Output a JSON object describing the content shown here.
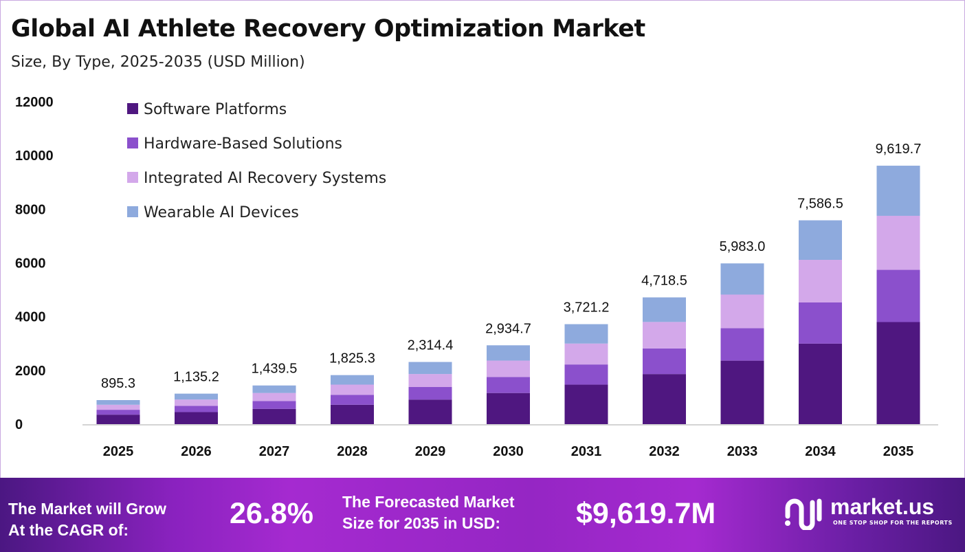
{
  "chart_data": {
    "type": "bar",
    "stacked": true,
    "title": "Global AI Athlete Recovery Optimization Market",
    "subtitle": "Size, By Type, 2025-2035 (USD Million)",
    "categories": [
      "2025",
      "2026",
      "2027",
      "2028",
      "2029",
      "2030",
      "2031",
      "2032",
      "2033",
      "2034",
      "2035"
    ],
    "series": [
      {
        "name": "Software Platforms",
        "color": "#4f1780",
        "values": [
          353.6,
          448.4,
          568.6,
          721.0,
          914.2,
          1159.2,
          1469.9,
          1863.8,
          2363.3,
          2996.7,
          3799.8
        ]
      },
      {
        "name": "Hardware-Based Solutions",
        "color": "#8b50cc",
        "values": [
          180.9,
          229.3,
          290.8,
          368.7,
          467.5,
          592.8,
          751.7,
          953.1,
          1208.6,
          1532.5,
          1943.2
        ]
      },
      {
        "name": "Integrated AI Recovery Systems",
        "color": "#d3a8ea",
        "values": [
          187.1,
          237.3,
          300.9,
          381.5,
          483.7,
          613.4,
          777.7,
          986.2,
          1250.4,
          1585.6,
          2010.5
        ]
      },
      {
        "name": "Wearable AI Devices",
        "color": "#8eaadd",
        "values": [
          173.7,
          220.2,
          279.2,
          354.1,
          449.0,
          569.3,
          721.9,
          915.4,
          1160.7,
          1471.7,
          1866.2
        ]
      }
    ],
    "totals": [
      895.3,
      1135.2,
      1439.5,
      1825.3,
      2314.4,
      2934.7,
      3721.2,
      4718.5,
      5983.0,
      7586.5,
      9619.7
    ],
    "total_labels": [
      "895.3",
      "1,135.2",
      "1,439.5",
      "1,825.3",
      "2,314.4",
      "2,934.7",
      "3,721.2",
      "4,718.5",
      "5,983.0",
      "7,586.5",
      "9,619.7"
    ],
    "yticks": [
      "0",
      "2000",
      "4000",
      "6000",
      "8000",
      "10000",
      "12000"
    ],
    "ylim": [
      0,
      12000
    ],
    "grid": false,
    "legend_position": "top-left"
  },
  "footer": {
    "cagr_label": [
      "The Market will Grow",
      "At the CAGR of:"
    ],
    "cagr_value": "26.8%",
    "forecast_label": [
      "The Forecasted Market",
      "Size for 2035 in USD:"
    ],
    "forecast_value": "$9,619.7M",
    "logo_name": "market.us",
    "logo_tagline": "ONE STOP SHOP FOR THE REPORTS"
  }
}
